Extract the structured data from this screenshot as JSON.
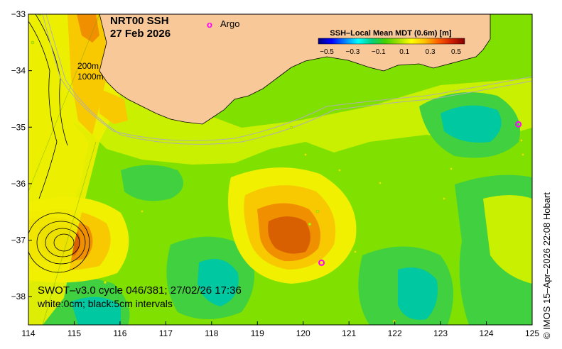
{
  "title": {
    "line1": "NRT00 SSH",
    "line2": "27 Feb 2026"
  },
  "argo_label": "Argo",
  "argo_marker": "o",
  "contour_depths": [
    "200m",
    "1000m"
  ],
  "colorbar": {
    "title": "SSH–Local Mean MDT (0.6m) [m]",
    "tick_labels": [
      "−0.5",
      "−0.3",
      "−0.1",
      "0.1",
      "0.3",
      "0.5"
    ],
    "colors": [
      "#000080",
      "#0000ff",
      "#0080ff",
      "#00ffff",
      "#00d080",
      "#40d000",
      "#a0e000",
      "#ffff00",
      "#ffc000",
      "#ff6000",
      "#d02000",
      "#800000"
    ]
  },
  "footer": {
    "line1": "SWOT–v3.0 cycle 046/381; 27/02/26 17:36",
    "line2": "white:0cm; black:5cm intervals"
  },
  "credit": "© IMOS 15–Apr–2026 22:08 Hobart",
  "chart_data": {
    "type": "map",
    "x_axis": {
      "range": [
        114,
        125
      ],
      "ticks": [
        "114",
        "115",
        "116",
        "117",
        "118",
        "119",
        "120",
        "121",
        "122",
        "123",
        "124",
        "125"
      ]
    },
    "y_axis": {
      "range": [
        -38.5,
        -33
      ],
      "ticks": [
        "−33",
        "−34",
        "−35",
        "−36",
        "−37",
        "−38"
      ]
    },
    "land_color": "#f8c898",
    "ssh_colors": {
      "neg": "#00c8a0",
      "low": "#40d040",
      "zero": "#80e000",
      "pos1": "#c8f000",
      "pos2": "#f0f000",
      "pos3": "#f8c800",
      "pos4": "#f09000",
      "pos5": "#d86000"
    },
    "eddies": [
      {
        "lon": 119.7,
        "lat": -36.9,
        "sign": "warm"
      },
      {
        "lon": 114.8,
        "lat": -37.1,
        "sign": "warm"
      },
      {
        "lon": 118.3,
        "lat": -37.8,
        "sign": "cold"
      },
      {
        "lon": 122.6,
        "lat": -37.9,
        "sign": "cold"
      },
      {
        "lon": 123.2,
        "lat": -34.9,
        "sign": "cold"
      }
    ],
    "argo_floats": [
      {
        "lon": 124.7,
        "lat": -34.95
      },
      {
        "lon": 120.4,
        "lat": -37.4
      }
    ]
  }
}
